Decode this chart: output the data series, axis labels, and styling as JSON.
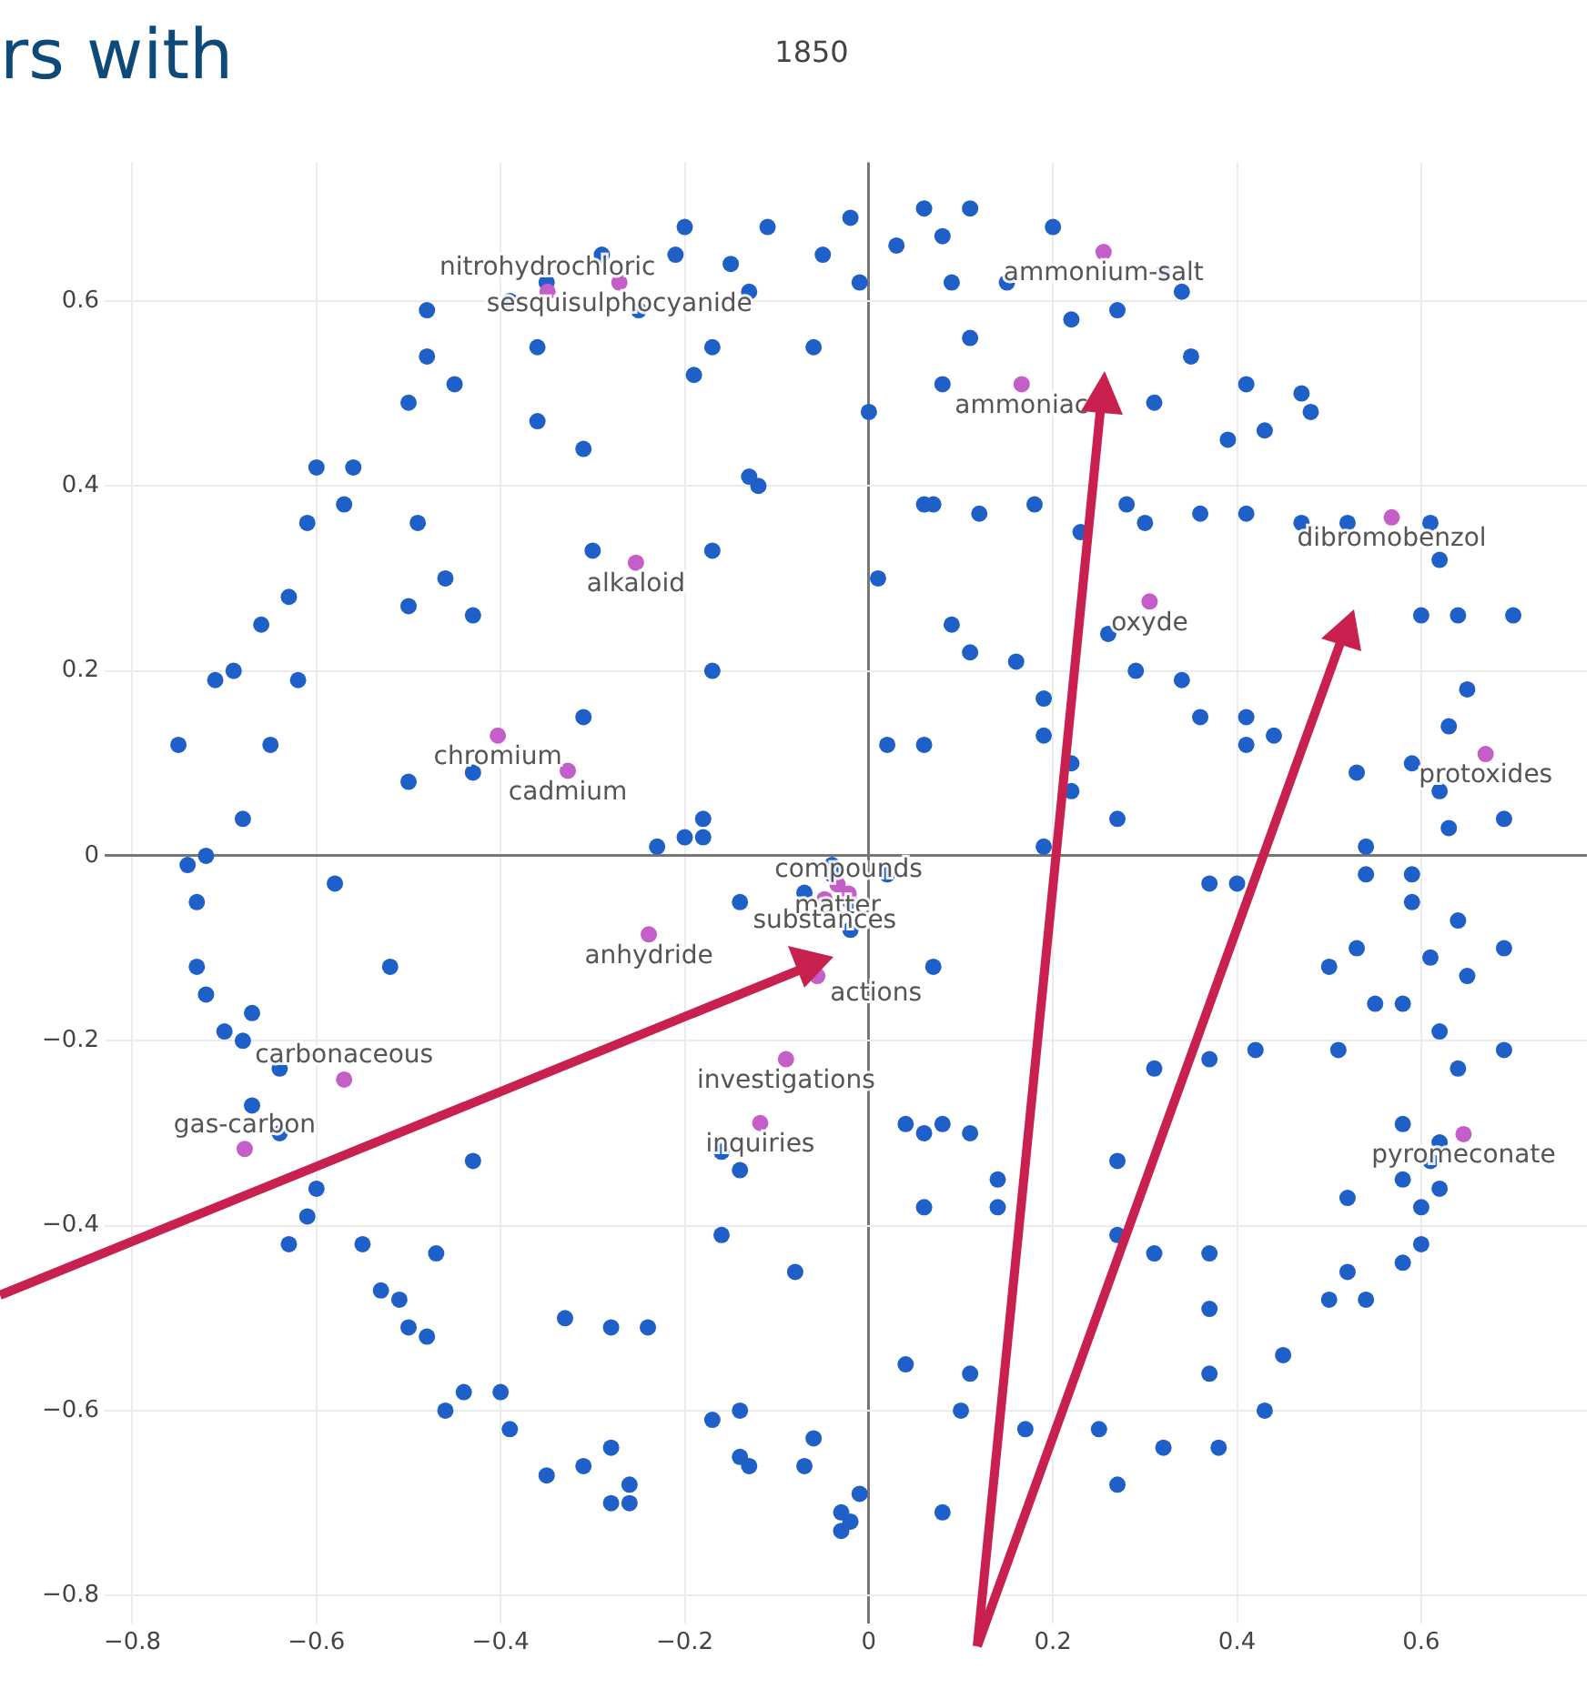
{
  "chart_data": {
    "type": "scatter",
    "title": "1850",
    "annotations": [
      "rs with",
      {
        "text": "sesquisulphocyanide",
        "x": -0.271,
        "y": 0.62
      },
      {
        "text": "nitrohydrochloric",
        "x": -0.349,
        "y": 0.61
      },
      {
        "text": "alkaloid",
        "x": -0.253,
        "y": 0.317
      },
      {
        "text": "chromium",
        "x": -0.403,
        "y": 0.13
      },
      {
        "text": "cadmium",
        "x": -0.327,
        "y": 0.092
      },
      {
        "text": "ammonium-salt",
        "x": 0.255,
        "y": 0.653
      },
      {
        "text": "ammoniac",
        "x": 0.166,
        "y": 0.51
      },
      {
        "text": "dibromobenzol",
        "x": 0.568,
        "y": 0.366
      },
      {
        "text": "oxyde",
        "x": 0.305,
        "y": 0.275
      },
      {
        "text": "protoxides",
        "x": 0.67,
        "y": 0.11
      },
      {
        "text": "anhydride",
        "x": -0.239,
        "y": -0.085
      },
      {
        "text": "actions",
        "x": -0.056,
        "y": -0.13
      },
      {
        "text": "investigations",
        "x": -0.09,
        "y": -0.22
      },
      {
        "text": "inquiries",
        "x": -0.118,
        "y": -0.289
      },
      {
        "text": "carbonaceous",
        "x": -0.57,
        "y": -0.242
      },
      {
        "text": "gas-carbon",
        "x": -0.678,
        "y": -0.317
      },
      {
        "text": "matter",
        "x": -0.034,
        "y": -0.031
      },
      {
        "text": "compounds",
        "x": -0.022,
        "y": -0.041
      },
      {
        "text": "substances",
        "x": -0.048,
        "y": -0.047
      },
      {
        "text": "pyromeconate",
        "x": 0.646,
        "y": -0.301
      }
    ],
    "xlim": [
      -0.83,
      0.78
    ],
    "ylim": [
      -0.83,
      0.75
    ],
    "xticks": [
      {
        "value": -0.8,
        "label": "−0.8"
      },
      {
        "value": -0.6,
        "label": "−0.6"
      },
      {
        "value": -0.4,
        "label": "−0.4"
      },
      {
        "value": -0.2,
        "label": "−0.2"
      },
      0,
      0.2,
      0.4,
      0.6
    ],
    "yticks": [
      {
        "value": -0.8,
        "label": "−0.8"
      },
      {
        "value": -0.6,
        "label": "−0.6"
      },
      {
        "value": -0.4,
        "label": "−0.4"
      },
      {
        "value": -0.2,
        "label": "−0.2"
      },
      0,
      0.2,
      0.4,
      0.6
    ],
    "grid": true,
    "marker": "circle",
    "series": [
      {
        "color": "#1f5fc8",
        "x": [
          -0.2,
          -0.11,
          -0.02,
          0.03,
          0.06,
          0.11,
          0.2,
          0.08,
          -0.05,
          -0.15,
          -0.21,
          -0.29,
          -0.35,
          -0.39,
          -0.48,
          -0.36,
          -0.25,
          -0.13,
          -0.01,
          0.09,
          0.15,
          0.32,
          0.34,
          0.27,
          0.22,
          0.11,
          0.08,
          0.0,
          -0.06,
          -0.17,
          -0.19,
          -0.12,
          -0.31,
          -0.36,
          -0.48,
          -0.45,
          -0.5,
          0.35,
          0.41,
          0.47,
          0.48,
          0.43,
          0.39,
          0.31,
          0.36,
          0.41,
          0.47,
          0.52,
          0.61,
          0.62,
          0.6,
          0.64,
          0.7,
          0.65,
          0.63,
          0.59,
          0.53,
          0.62,
          0.69,
          0.63,
          0.54,
          0.28,
          0.3,
          0.23,
          0.18,
          0.07,
          0.12,
          0.06,
          0.01,
          0.09,
          0.11,
          0.16,
          0.26,
          0.29,
          0.34,
          0.36,
          0.41,
          0.44,
          0.41,
          0.19,
          0.19,
          0.22,
          0.22,
          0.19,
          0.06,
          0.02,
          0.27,
          -0.56,
          -0.6,
          -0.61,
          -0.57,
          -0.63,
          -0.66,
          -0.69,
          -0.71,
          -0.62,
          -0.65,
          -0.75,
          -0.72,
          -0.74,
          -0.73,
          -0.68,
          -0.49,
          -0.46,
          -0.43,
          -0.5,
          -0.31,
          -0.43,
          -0.5,
          -0.17,
          -0.17,
          -0.3,
          -0.2,
          -0.18,
          -0.23,
          -0.18,
          -0.13,
          -0.73,
          -0.72,
          -0.7,
          -0.68,
          -0.67,
          -0.64,
          -0.67,
          -0.64,
          -0.6,
          -0.61,
          -0.63,
          -0.55,
          -0.53,
          -0.51,
          -0.5,
          -0.48,
          -0.46,
          -0.44,
          -0.4,
          -0.39,
          -0.31,
          -0.28,
          -0.26,
          -0.26,
          -0.28,
          -0.43,
          -0.47,
          -0.52,
          -0.58,
          -0.33,
          -0.28,
          -0.35,
          -0.24,
          -0.16,
          -0.14,
          -0.16,
          -0.08,
          -0.14,
          -0.17,
          -0.14,
          -0.13,
          -0.07,
          -0.06,
          -0.03,
          -0.02,
          -0.03,
          -0.01,
          -0.14,
          -0.07,
          -0.02,
          -0.02,
          0.02,
          -0.04,
          -0.04,
          0.08,
          0.11,
          0.14,
          0.06,
          0.04,
          0.11,
          0.1,
          0.08,
          0.17,
          0.25,
          0.27,
          0.32,
          0.37,
          0.38,
          0.37,
          0.45,
          0.43,
          0.5,
          0.54,
          0.52,
          0.58,
          0.6,
          0.52,
          0.58,
          0.6,
          0.62,
          0.61,
          0.62,
          0.58,
          0.64,
          0.69,
          0.62,
          0.51,
          0.53,
          0.55,
          0.58,
          0.65,
          0.61,
          0.64,
          0.69,
          0.5,
          0.54,
          0.59,
          0.59,
          0.37,
          0.4,
          0.37,
          0.42,
          0.31,
          0.27,
          0.27,
          0.31,
          0.37,
          0.07,
          0.04,
          0.06,
          0.14
        ],
        "values": [
          0.68,
          0.68,
          0.69,
          0.66,
          0.7,
          0.7,
          0.68,
          0.67,
          0.65,
          0.64,
          0.65,
          0.65,
          0.62,
          0.6,
          0.59,
          0.55,
          0.59,
          0.61,
          0.62,
          0.62,
          0.62,
          0.63,
          0.61,
          0.59,
          0.58,
          0.56,
          0.51,
          0.48,
          0.55,
          0.55,
          0.52,
          0.4,
          0.44,
          0.47,
          0.54,
          0.51,
          0.49,
          0.54,
          0.51,
          0.5,
          0.48,
          0.46,
          0.45,
          0.49,
          0.37,
          0.37,
          0.36,
          0.36,
          0.36,
          0.32,
          0.26,
          0.26,
          0.26,
          0.18,
          0.14,
          0.1,
          0.09,
          0.07,
          0.04,
          0.03,
          0.01,
          0.38,
          0.36,
          0.35,
          0.38,
          0.38,
          0.37,
          0.38,
          0.3,
          0.25,
          0.22,
          0.21,
          0.24,
          0.2,
          0.19,
          0.15,
          0.12,
          0.13,
          0.15,
          0.17,
          0.13,
          0.1,
          0.07,
          0.01,
          0.12,
          0.12,
          0.04,
          0.42,
          0.42,
          0.36,
          0.38,
          0.28,
          0.25,
          0.2,
          0.19,
          0.19,
          0.12,
          0.12,
          0.0,
          -0.01,
          -0.05,
          0.04,
          0.36,
          0.3,
          0.26,
          0.27,
          0.15,
          0.09,
          0.08,
          0.2,
          0.33,
          0.33,
          0.02,
          0.04,
          0.01,
          0.02,
          0.41,
          -0.12,
          -0.15,
          -0.19,
          -0.2,
          -0.17,
          -0.23,
          -0.27,
          -0.3,
          -0.36,
          -0.39,
          -0.42,
          -0.42,
          -0.47,
          -0.48,
          -0.51,
          -0.52,
          -0.6,
          -0.58,
          -0.58,
          -0.62,
          -0.66,
          -0.64,
          -0.68,
          -0.7,
          -0.7,
          -0.33,
          -0.43,
          -0.12,
          -0.03,
          -0.5,
          -0.51,
          -0.67,
          -0.51,
          -0.41,
          -0.34,
          -0.32,
          -0.45,
          -0.6,
          -0.61,
          -0.65,
          -0.66,
          -0.66,
          -0.63,
          -0.71,
          -0.72,
          -0.73,
          -0.69,
          -0.05,
          -0.04,
          -0.05,
          -0.08,
          -0.02,
          -0.01,
          -0.02,
          -0.29,
          -0.3,
          -0.35,
          -0.38,
          -0.55,
          -0.56,
          -0.6,
          -0.71,
          -0.62,
          -0.62,
          -0.68,
          -0.64,
          -0.56,
          -0.64,
          -0.49,
          -0.54,
          -0.6,
          -0.48,
          -0.48,
          -0.45,
          -0.44,
          -0.42,
          -0.37,
          -0.35,
          -0.38,
          -0.36,
          -0.33,
          -0.31,
          -0.29,
          -0.23,
          -0.21,
          -0.19,
          -0.21,
          -0.1,
          -0.16,
          -0.16,
          -0.13,
          -0.11,
          -0.07,
          -0.1,
          -0.12,
          -0.02,
          -0.02,
          -0.05,
          -0.03,
          -0.03,
          -0.22,
          -0.21,
          -0.23,
          -0.33,
          -0.41,
          -0.43,
          -0.43,
          -0.12,
          -0.29,
          -0.3,
          -0.38
        ]
      },
      {
        "color": "#c45ec9",
        "x": [
          -0.271,
          -0.349,
          -0.253,
          -0.403,
          -0.327,
          0.255,
          0.166,
          0.568,
          0.305,
          0.67,
          -0.239,
          -0.056,
          -0.09,
          -0.118,
          -0.57,
          -0.678,
          -0.034,
          -0.022,
          -0.048,
          0.646
        ],
        "values": [
          0.62,
          0.61,
          0.317,
          0.13,
          0.092,
          0.653,
          0.51,
          0.366,
          0.275,
          0.11,
          -0.085,
          -0.13,
          -0.22,
          -0.289,
          -0.242,
          -0.317,
          -0.031,
          -0.041,
          -0.047,
          -0.301
        ]
      }
    ]
  }
}
